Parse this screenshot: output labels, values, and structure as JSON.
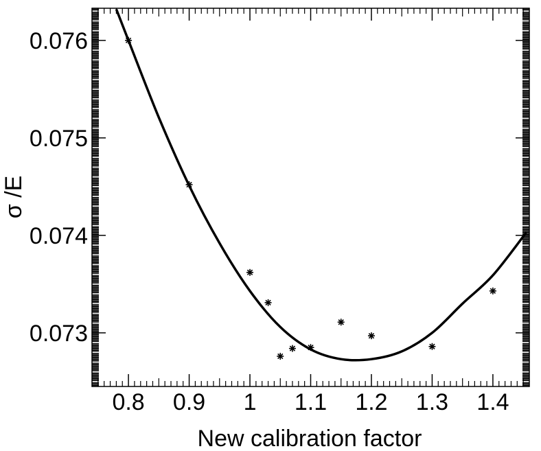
{
  "chart_data": {
    "type": "scatter",
    "title": "",
    "xlabel": "New calibration factor",
    "ylabel": "σ /E",
    "xlim": [
      0.74,
      1.46
    ],
    "ylim": [
      0.07245,
      0.07633
    ],
    "x_ticks": [
      0.8,
      0.9,
      1.0,
      1.1,
      1.2,
      1.3,
      1.4
    ],
    "x_tick_labels": [
      "0.8",
      "0.9",
      "1",
      "1.1",
      "1.2",
      "1.3",
      "1.4"
    ],
    "y_ticks": [
      0.073,
      0.074,
      0.075,
      0.076
    ],
    "y_tick_labels": [
      "0.073",
      "0.074",
      "0.075",
      "0.076"
    ],
    "grid": false,
    "legend": "none",
    "series": [
      {
        "kind": "points",
        "marker": "asterisk",
        "x": [
          0.8,
          0.9,
          1.0,
          1.03,
          1.05,
          1.07,
          1.1,
          1.15,
          1.2,
          1.3,
          1.4
        ],
        "y": [
          0.076,
          0.07452,
          0.07362,
          0.07331,
          0.07276,
          0.07284,
          0.07285,
          0.07311,
          0.07297,
          0.07286,
          0.07343
        ]
      },
      {
        "kind": "fit-curve",
        "x": [
          0.78,
          0.8,
          0.85,
          0.9,
          0.95,
          1.0,
          1.05,
          1.1,
          1.15,
          1.2,
          1.25,
          1.3,
          1.35,
          1.4,
          1.455
        ],
        "y": [
          0.07632,
          0.076,
          0.07521,
          0.07451,
          0.07392,
          0.07343,
          0.07306,
          0.07283,
          0.07273,
          0.07273,
          0.07281,
          0.073,
          0.0733,
          0.07359,
          0.07403
        ]
      }
    ],
    "colors": {
      "line": "#000000",
      "marker": "#000000",
      "frame": "#000000"
    }
  }
}
